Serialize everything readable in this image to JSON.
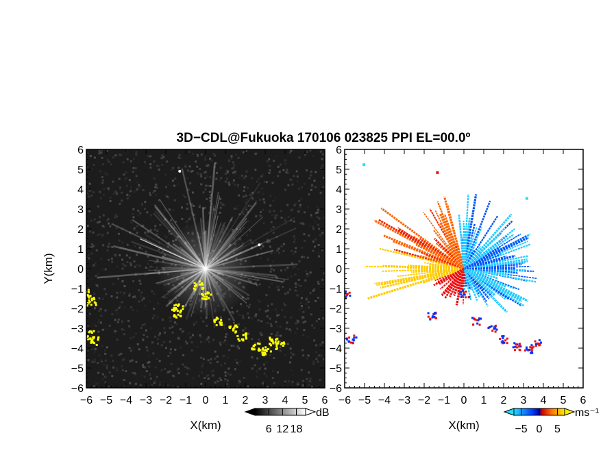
{
  "title": "3D−CDL@Fukuoka 170106 023825 PPI EL=00.0º",
  "colors": {
    "background_left": "#1c1c1c",
    "highlight_yellow": "#ffff00",
    "doppler_blue": "#0055ff",
    "doppler_cyan": "#22ddff",
    "doppler_orange": "#ff6600",
    "doppler_red": "#ee1111",
    "doppler_yellow": "#ffcc00"
  },
  "chart_data": [
    {
      "type": "heatmap",
      "name": "reflectivity",
      "xlabel": "X(km)",
      "ylabel": "Y(km)",
      "xlim": [
        -6,
        6
      ],
      "ylim": [
        -6,
        6
      ],
      "xticks": [
        "−6",
        "−5",
        "−4",
        "−3",
        "−2",
        "−1",
        "0",
        "1",
        "2",
        "3",
        "4",
        "5",
        "6"
      ],
      "yticks": [
        "−6",
        "−5",
        "−4",
        "−3",
        "−2",
        "−1",
        "0",
        "1",
        "2",
        "3",
        "4",
        "5",
        "6"
      ],
      "colorbar": {
        "unit": "dB",
        "ticks": [
          "6",
          "12",
          "18"
        ],
        "range": [
          0,
          22
        ]
      },
      "yellow_echo_track": [
        [
          -6,
          -1.2
        ],
        [
          -5.8,
          -1.6
        ],
        [
          -5.9,
          -3.3
        ],
        [
          -5.6,
          -3.6
        ],
        [
          -1.5,
          -2.2
        ],
        [
          -1.4,
          -1.9
        ],
        [
          -0.4,
          -0.8
        ],
        [
          0,
          -1.3
        ],
        [
          0.6,
          -2.6
        ],
        [
          1.3,
          -3.0
        ],
        [
          1.8,
          -3.4
        ],
        [
          2.5,
          -3.9
        ],
        [
          3.0,
          -4.1
        ],
        [
          3.4,
          -3.6
        ],
        [
          3.7,
          -3.8
        ]
      ],
      "bright_echo_points": [
        [
          -1.3,
          4.9
        ],
        [
          2.7,
          1.2
        ]
      ]
    },
    {
      "type": "heatmap",
      "name": "doppler_velocity",
      "xlabel": "X(km)",
      "xlim": [
        -6,
        6
      ],
      "ylim": [
        -6,
        6
      ],
      "xticks": [
        "−6",
        "−5",
        "−4",
        "−3",
        "−2",
        "−1",
        "0",
        "1",
        "2",
        "3",
        "4",
        "5",
        "6"
      ],
      "yticks": [
        "−6",
        "−5",
        "−4",
        "−3",
        "−2",
        "−1",
        "0",
        "1",
        "2",
        "3",
        "4",
        "5",
        "6"
      ],
      "colorbar": {
        "unit": "ms⁻¹",
        "ticks": [
          "−5",
          "0",
          "5"
        ],
        "range": [
          -7,
          7
        ]
      },
      "velocity_echo_track": [
        [
          -6,
          -1.3
        ],
        [
          -5.7,
          -3.5
        ],
        [
          -1.6,
          -2.3
        ],
        [
          0,
          -1.2
        ],
        [
          0.6,
          -2.6
        ],
        [
          1.4,
          -3.0
        ],
        [
          1.9,
          -3.5
        ],
        [
          2.6,
          -3.9
        ],
        [
          3.2,
          -4.0
        ],
        [
          3.6,
          -3.7
        ]
      ],
      "sparse_points": [
        [
          -5.1,
          5.3
        ],
        [
          -1.4,
          4.9
        ],
        [
          3.1,
          3.6
        ]
      ]
    }
  ]
}
